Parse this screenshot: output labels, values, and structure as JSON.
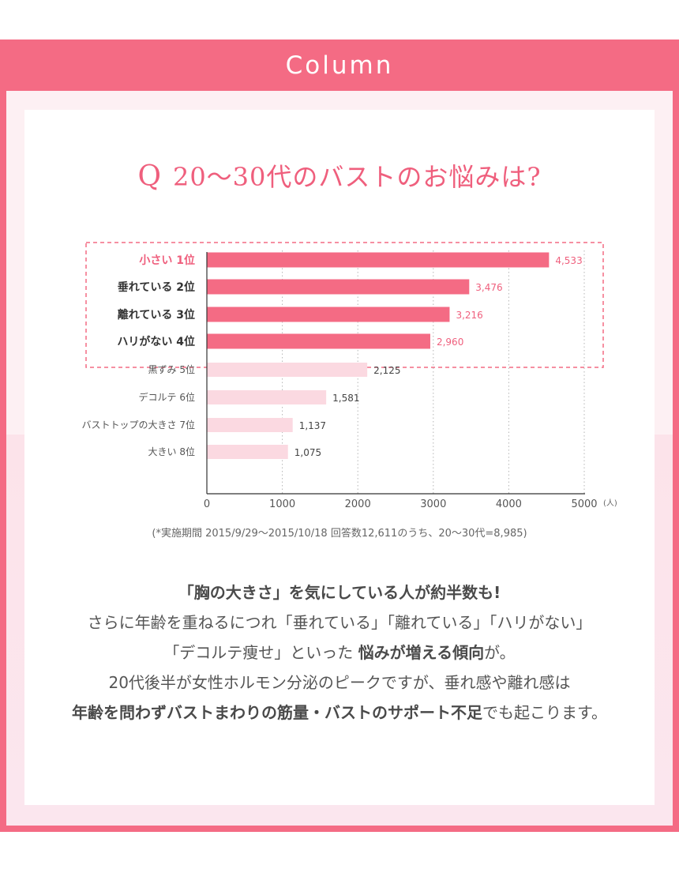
{
  "header": {
    "title": "Column"
  },
  "question": {
    "mark": "Q",
    "text": "20〜30代のバストのお悩みは?"
  },
  "chart_data": {
    "type": "bar",
    "orientation": "horizontal",
    "categories": [
      "小さい 1位",
      "垂れている 2位",
      "離れている 3位",
      "ハリがない 4位",
      "黒ずみ 5位",
      "デコルテ 6位",
      "バストトップの大きさ 7位",
      "大きい 8位"
    ],
    "values": [
      4533,
      3476,
      3216,
      2960,
      2125,
      1581,
      1137,
      1075
    ],
    "value_labels": [
      "4,533",
      "3,476",
      "3,216",
      "2,960",
      "2,125",
      "1,581",
      "1,137",
      "1,075"
    ],
    "highlight_count": 4,
    "x_ticks": [
      0,
      1000,
      2000,
      3000,
      4000,
      5000
    ],
    "x_unit": "(人)",
    "xlim": [
      0,
      5000
    ],
    "grid": "vertical dotted",
    "colors": {
      "highlight": "#f46b84",
      "normal": "#fbd9e1",
      "label_highlight": "#ef5f7d",
      "frame": "#f46b84"
    }
  },
  "footnote": "(*実施期間 2015/9/29〜2015/10/18 回答数12,611のうち、20〜30代=8,985)",
  "body": {
    "line1": "「胸の大きさ」を気にしている人が約半数も!",
    "line2": "さらに年齢を重ねるにつれ「垂れている」「離れている」「ハリがない」",
    "line3a": "「デコルテ痩せ」といった ",
    "line3b": "悩みが増える傾向",
    "line3c": "が。",
    "line4": "20代後半が女性ホルモン分泌のピークですが、垂れ感や離れ感は",
    "line5a": "年齢を問わずバストまわりの筋量・バストのサポート不足",
    "line5b": "でも起こります。"
  }
}
